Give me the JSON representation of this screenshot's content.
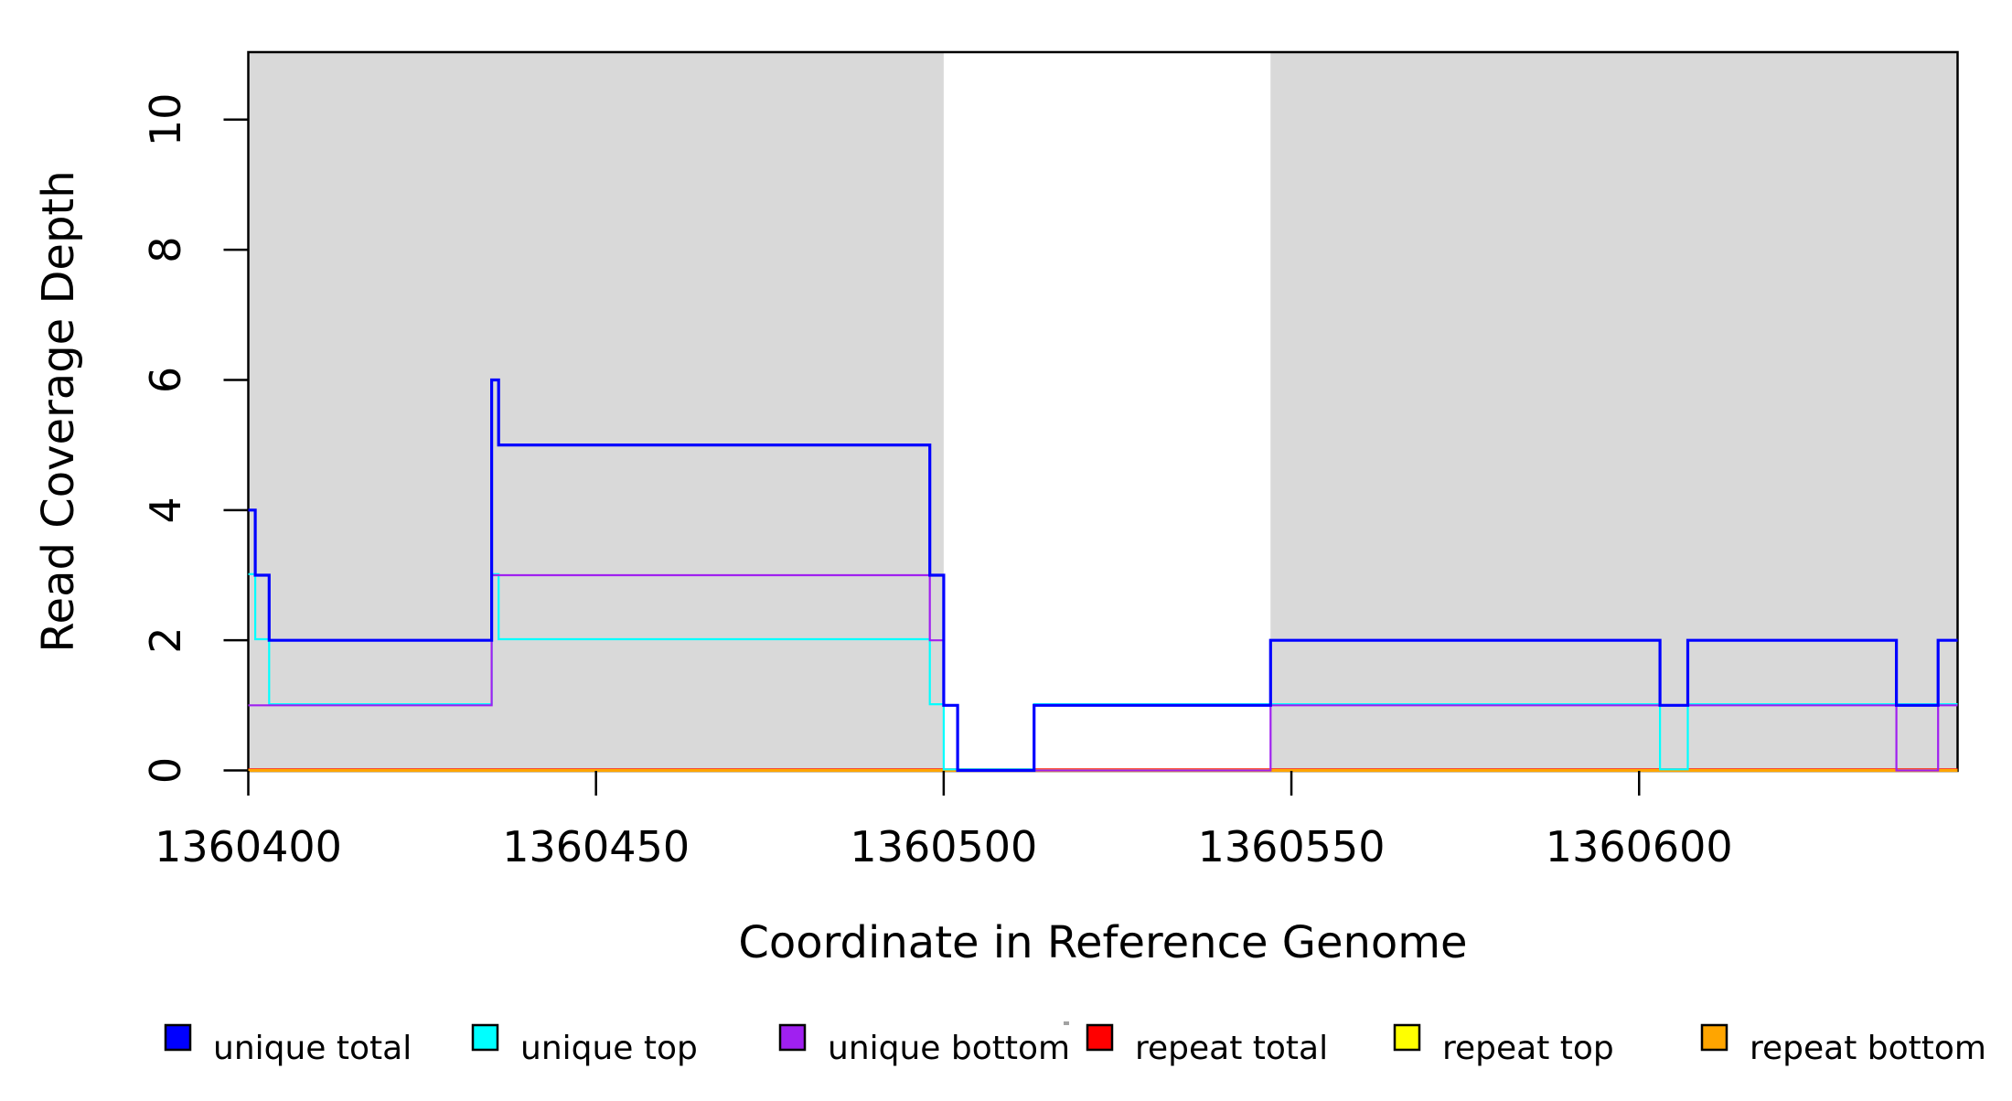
{
  "chart_data": {
    "type": "line",
    "subtype": "step-coverage-plot",
    "title": "",
    "xlabel": "Coordinate in Reference Genome",
    "ylabel": "Read Coverage Depth",
    "xlim": [
      1360400,
      1360645.8
    ],
    "ylim": [
      0,
      11.05
    ],
    "x_ticks": [
      "1360400",
      "1360450",
      "1360500",
      "1360550",
      "1360600"
    ],
    "x_tick_values": [
      1360400,
      1360450,
      1360500,
      1360550,
      1360600
    ],
    "y_ticks": [
      "0",
      "2",
      "4",
      "6",
      "8",
      "10"
    ],
    "y_tick_values": [
      0,
      2,
      4,
      6,
      8,
      10
    ],
    "grid": false,
    "plot_background": "#ffffff",
    "shaded_region_color": "#D9D9D9",
    "shaded_regions": [
      {
        "from": 1360400,
        "to": 1360500
      },
      {
        "from": 1360547,
        "to": 1360645.8
      }
    ],
    "series_end_x": 1360645.8,
    "series": [
      {
        "name": "repeat total",
        "color": "#FF0000",
        "width": 2,
        "dy": -1.2,
        "steps": [
          [
            1360400,
            0
          ]
        ]
      },
      {
        "name": "repeat top",
        "color": "#FFFF00",
        "width": 2,
        "dy": 0,
        "steps": [
          [
            1360400,
            0
          ]
        ]
      },
      {
        "name": "repeat bottom",
        "color": "#FFA500",
        "width": 3.2,
        "dy": 0,
        "steps": [
          [
            1360400,
            0
          ]
        ]
      },
      {
        "name": "unique top",
        "color": "#00FFFF",
        "width": 2.2,
        "dy": -1.2,
        "steps": [
          [
            1360400,
            3
          ],
          [
            1360401,
            2
          ],
          [
            1360403,
            1
          ],
          [
            1360435,
            3
          ],
          [
            1360436,
            2
          ],
          [
            1360498,
            1
          ],
          [
            1360500,
            0
          ],
          [
            1360513,
            1
          ],
          [
            1360603,
            0
          ],
          [
            1360607,
            1
          ]
        ]
      },
      {
        "name": "unique bottom",
        "color": "#A020F0",
        "width": 2.2,
        "dy": 0,
        "steps": [
          [
            1360400,
            1
          ],
          [
            1360435,
            3
          ],
          [
            1360498,
            2
          ],
          [
            1360500,
            1
          ],
          [
            1360502,
            0
          ],
          [
            1360547,
            1
          ],
          [
            1360637,
            0
          ],
          [
            1360643,
            1
          ]
        ]
      },
      {
        "name": "unique total",
        "color": "#0000FF",
        "width": 3.2,
        "dy": 0,
        "steps": [
          [
            1360400,
            4
          ],
          [
            1360401,
            3
          ],
          [
            1360403,
            2
          ],
          [
            1360435,
            6
          ],
          [
            1360436,
            5
          ],
          [
            1360498,
            3
          ],
          [
            1360500,
            1
          ],
          [
            1360502,
            0
          ],
          [
            1360513,
            1
          ],
          [
            1360547,
            2
          ],
          [
            1360603,
            1
          ],
          [
            1360607,
            2
          ],
          [
            1360637,
            1
          ],
          [
            1360643,
            2
          ]
        ]
      }
    ],
    "legend_position": "bottom-horizontal",
    "legend": [
      {
        "label": "unique total",
        "color": "#0000FF"
      },
      {
        "label": "unique top",
        "color": "#00FFFF"
      },
      {
        "label": "unique bottom",
        "color": "#A020F0"
      },
      {
        "label": "repeat total",
        "color": "#FF0000"
      },
      {
        "label": "repeat top",
        "color": "#FFFF00"
      },
      {
        "label": "repeat bottom",
        "color": "#FFA500"
      }
    ]
  },
  "colors": {
    "axis": "#000000",
    "text": "#000000",
    "background": "#ffffff",
    "stray_mark": "#555555"
  }
}
